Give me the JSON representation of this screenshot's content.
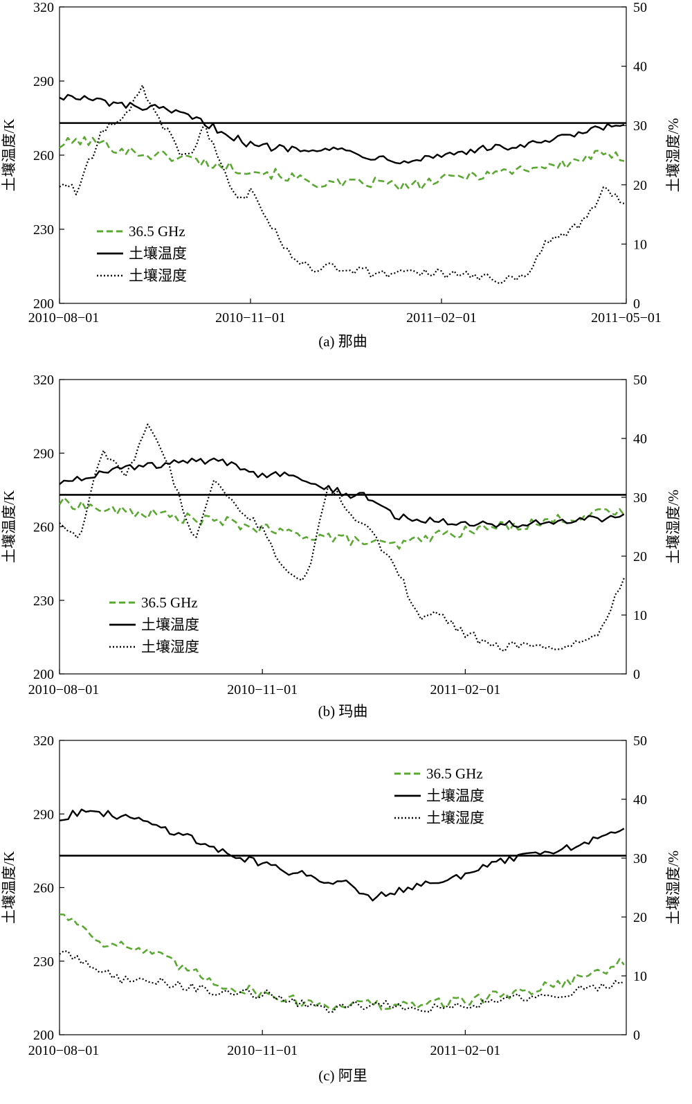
{
  "chart_data": [
    {
      "type": "line",
      "caption": "(a)  那曲",
      "ylabel": "土壤温度/K",
      "y2label": "土壤湿度/%",
      "ylim": [
        200,
        320
      ],
      "y2lim": [
        0,
        50
      ],
      "yticks": [
        200,
        230,
        260,
        290,
        320
      ],
      "y2ticks": [
        0,
        10,
        20,
        30,
        40,
        50
      ],
      "x_range": [
        "2010-08-01",
        "2011-05-01"
      ],
      "x_ticks": [
        "2010-08-01",
        "2010-11-01",
        "2011-02-01",
        "2011-05-01"
      ],
      "legend_position": "bottom-left",
      "reference_line_y": 273,
      "series": [
        {
          "name": "36.5 GHz",
          "axis": "left",
          "color": "#5aa832",
          "style": "dashed",
          "x": [
            "2010-08-01",
            "2010-08-10",
            "2010-08-20",
            "2010-09-01",
            "2010-09-15",
            "2010-10-01",
            "2010-10-15",
            "2010-11-01",
            "2010-11-15",
            "2010-12-01",
            "2010-12-15",
            "2011-01-01",
            "2011-01-15",
            "2011-02-01",
            "2011-02-15",
            "2011-03-01",
            "2011-03-15",
            "2011-04-01",
            "2011-04-15",
            "2011-04-30"
          ],
          "y": [
            264,
            266,
            265,
            262,
            260,
            259,
            256,
            254,
            252,
            249,
            248,
            249,
            247,
            250,
            252,
            253,
            255,
            256,
            260,
            259
          ]
        },
        {
          "name": "土壤温度",
          "axis": "left",
          "color": "#000000",
          "style": "solid",
          "x": [
            "2010-08-01",
            "2010-08-10",
            "2010-08-20",
            "2010-09-01",
            "2010-09-15",
            "2010-10-01",
            "2010-10-15",
            "2010-10-25",
            "2010-11-01",
            "2010-11-15",
            "2010-12-01",
            "2010-12-15",
            "2011-01-01",
            "2011-01-15",
            "2011-02-01",
            "2011-02-15",
            "2011-03-01",
            "2011-03-15",
            "2011-04-01",
            "2011-04-15",
            "2011-04-30"
          ],
          "y": [
            284,
            283,
            282,
            280,
            279,
            276,
            271,
            267,
            264,
            263,
            263,
            262,
            259,
            258,
            260,
            262,
            263,
            264,
            267,
            270,
            273
          ]
        },
        {
          "name": "土壤湿度",
          "axis": "right",
          "color": "#000000",
          "style": "dotted",
          "x": [
            "2010-08-01",
            "2010-08-10",
            "2010-08-20",
            "2010-09-01",
            "2010-09-10",
            "2010-09-20",
            "2010-10-01",
            "2010-10-10",
            "2010-10-20",
            "2010-10-25",
            "2010-11-01",
            "2010-11-10",
            "2010-11-20",
            "2010-12-01",
            "2010-12-15",
            "2011-01-01",
            "2011-01-15",
            "2011-02-01",
            "2011-02-15",
            "2011-03-01",
            "2011-03-15",
            "2011-03-25",
            "2011-04-01",
            "2011-04-10",
            "2011-04-20",
            "2011-04-30"
          ],
          "y": [
            20,
            19,
            28,
            32,
            36,
            30,
            24,
            30,
            22,
            17,
            19,
            14,
            8,
            6,
            6,
            5,
            5,
            5,
            4.5,
            4,
            5,
            11,
            11,
            14,
            19,
            17
          ]
        }
      ]
    },
    {
      "type": "line",
      "caption": "(b)  玛曲",
      "ylabel": "土壤温度/K",
      "y2label": "土壤湿度/%",
      "ylim": [
        200,
        320
      ],
      "y2lim": [
        0,
        50
      ],
      "yticks": [
        200,
        230,
        260,
        290,
        320
      ],
      "y2ticks": [
        0,
        10,
        20,
        30,
        40,
        50
      ],
      "x_range": [
        "2010-08-01",
        "2011-04-15"
      ],
      "x_ticks": [
        "2010-08-01",
        "2010-11-01",
        "2011-02-01"
      ],
      "legend_position": "bottom-left",
      "reference_line_y": 273,
      "series": [
        {
          "name": "36.5 GHz",
          "axis": "left",
          "color": "#5aa832",
          "style": "dashed",
          "x": [
            "2010-08-01",
            "2010-08-10",
            "2010-08-20",
            "2010-09-01",
            "2010-09-15",
            "2010-10-01",
            "2010-10-15",
            "2010-11-01",
            "2010-11-15",
            "2010-12-01",
            "2010-12-15",
            "2011-01-01",
            "2011-01-15",
            "2011-02-01",
            "2011-02-15",
            "2011-03-01",
            "2011-03-15",
            "2011-04-01",
            "2011-04-15"
          ],
          "y": [
            270,
            269,
            267,
            266,
            265,
            263,
            262,
            259,
            257,
            256,
            254,
            252,
            256,
            258,
            260,
            261,
            263,
            265,
            266
          ]
        },
        {
          "name": "土壤温度",
          "axis": "left",
          "color": "#000000",
          "style": "solid",
          "x": [
            "2010-08-01",
            "2010-08-10",
            "2010-08-20",
            "2010-09-01",
            "2010-09-15",
            "2010-10-01",
            "2010-10-15",
            "2010-11-01",
            "2010-11-15",
            "2010-12-01",
            "2010-12-10",
            "2010-12-20",
            "2011-01-01",
            "2011-01-15",
            "2011-02-01",
            "2011-02-15",
            "2011-03-01",
            "2011-03-15",
            "2011-04-01",
            "2011-04-15"
          ],
          "y": [
            278,
            280,
            282,
            284,
            285,
            287,
            286,
            281,
            282,
            276,
            273,
            272,
            264,
            263,
            262,
            261,
            261,
            262,
            263,
            264
          ]
        },
        {
          "name": "土壤湿度",
          "axis": "right",
          "color": "#000000",
          "style": "dotted",
          "x": [
            "2010-08-01",
            "2010-08-10",
            "2010-08-20",
            "2010-09-01",
            "2010-09-10",
            "2010-09-20",
            "2010-10-01",
            "2010-10-10",
            "2010-10-20",
            "2010-11-01",
            "2010-11-10",
            "2010-11-20",
            "2010-12-01",
            "2010-12-10",
            "2010-12-20",
            "2011-01-01",
            "2011-01-10",
            "2011-01-20",
            "2011-02-01",
            "2011-02-15",
            "2011-03-01",
            "2011-03-15",
            "2011-04-01",
            "2011-04-15"
          ],
          "y": [
            26,
            23,
            38,
            34,
            42,
            35,
            22,
            33,
            28,
            25,
            18,
            15,
            32,
            28,
            24,
            18,
            10,
            10,
            7,
            4.5,
            5,
            4.5,
            6,
            17
          ]
        }
      ]
    },
    {
      "type": "line",
      "caption": "(c)  阿里",
      "ylabel": "土壤温度/K",
      "y2label": "土壤湿度/%",
      "ylim": [
        200,
        320
      ],
      "y2lim": [
        0,
        50
      ],
      "yticks": [
        200,
        230,
        260,
        290,
        320
      ],
      "y2ticks": [
        0,
        10,
        20,
        30,
        40,
        50
      ],
      "x_range": [
        "2010-08-01",
        "2011-04-15"
      ],
      "x_ticks": [
        "2010-08-01",
        "2010-11-01",
        "2011-02-01"
      ],
      "legend_position": "top-right",
      "reference_line_y": 273,
      "series": [
        {
          "name": "36.5 GHz",
          "axis": "left",
          "color": "#5aa832",
          "style": "dashed",
          "x": [
            "2010-08-01",
            "2010-08-10",
            "2010-08-20",
            "2010-09-01",
            "2010-09-15",
            "2010-10-01",
            "2010-10-15",
            "2010-11-01",
            "2010-11-15",
            "2010-12-01",
            "2010-12-15",
            "2011-01-01",
            "2011-01-15",
            "2011-02-01",
            "2011-02-15",
            "2011-03-01",
            "2011-03-15",
            "2011-04-01",
            "2011-04-15"
          ],
          "y": [
            250,
            245,
            238,
            236,
            232,
            225,
            220,
            217,
            214,
            212,
            213,
            211,
            213,
            214,
            216,
            218,
            221,
            225,
            230
          ]
        },
        {
          "name": "土壤温度",
          "axis": "left",
          "color": "#000000",
          "style": "solid",
          "x": [
            "2010-08-01",
            "2010-08-10",
            "2010-08-20",
            "2010-09-01",
            "2010-09-15",
            "2010-10-01",
            "2010-10-15",
            "2010-11-01",
            "2010-11-15",
            "2010-12-01",
            "2010-12-10",
            "2010-12-20",
            "2011-01-01",
            "2011-01-15",
            "2011-02-01",
            "2011-02-15",
            "2011-03-01",
            "2011-03-15",
            "2011-04-01",
            "2011-04-15"
          ],
          "y": [
            288,
            291,
            290,
            289,
            285,
            280,
            274,
            270,
            266,
            263,
            262,
            256,
            259,
            262,
            265,
            270,
            273,
            275,
            280,
            283
          ]
        },
        {
          "name": "土壤湿度",
          "axis": "right",
          "color": "#000000",
          "style": "dotted",
          "x": [
            "2010-08-01",
            "2010-08-10",
            "2010-08-20",
            "2010-09-01",
            "2010-09-15",
            "2010-10-01",
            "2010-10-15",
            "2010-11-01",
            "2010-11-15",
            "2010-12-01",
            "2010-12-15",
            "2011-01-01",
            "2011-01-15",
            "2011-02-01",
            "2011-02-15",
            "2011-03-01",
            "2011-03-15",
            "2011-04-01",
            "2011-04-15"
          ],
          "y": [
            14,
            13,
            11,
            9,
            9,
            8,
            7,
            7,
            5.5,
            4.5,
            5,
            5,
            4.5,
            5,
            5.5,
            6.5,
            7,
            8,
            9
          ]
        }
      ]
    }
  ]
}
